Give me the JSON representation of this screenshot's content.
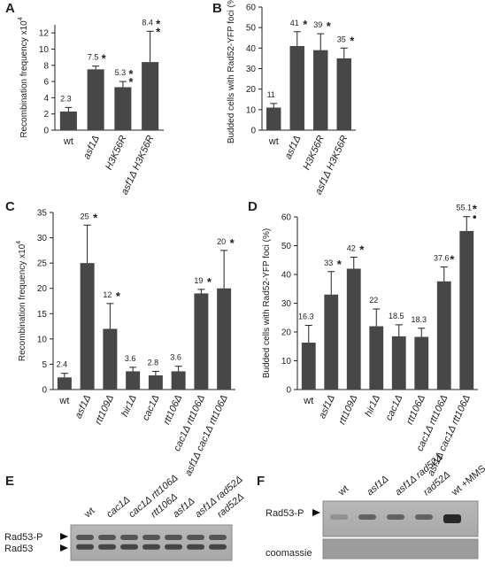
{
  "chart_data": [
    {
      "type": "bar",
      "panel": "A",
      "ylabel": "Recombination frequency x10",
      "ylabel_exponent": "4",
      "categories": [
        "wt",
        "asf1Δ",
        "H3K56R",
        "asf1Δ H3K56R"
      ],
      "values": [
        2.3,
        7.5,
        5.3,
        8.4
      ],
      "errors": [
        0.5,
        0.4,
        0.7,
        3.8
      ],
      "annotations": [
        null,
        "*",
        "**",
        "**"
      ],
      "color": "#474747",
      "ylim": [
        0,
        13
      ],
      "yticks": [
        0,
        2,
        4,
        6,
        8,
        10,
        12
      ]
    },
    {
      "type": "bar",
      "panel": "B",
      "ylabel": "Budded cells with Rad52-YFP foci (%)",
      "categories": [
        "wt",
        "asf1Δ",
        "H3K56R",
        "asf1Δ H3K56R"
      ],
      "values": [
        11,
        41,
        39,
        35
      ],
      "errors": [
        2,
        7,
        8,
        5
      ],
      "annotations": [
        null,
        "*",
        "*",
        "*"
      ],
      "color": "#474747",
      "ylim": [
        0,
        60
      ],
      "yticks": [
        0,
        10,
        20,
        30,
        40,
        50,
        60
      ]
    },
    {
      "type": "bar",
      "panel": "C",
      "ylabel": "Recombination frequency x10",
      "ylabel_exponent": "4",
      "categories": [
        "wt",
        "asf1Δ",
        "rtt109Δ",
        "hir1Δ",
        "cac1Δ",
        "rtt106Δ",
        "cac1Δ rtt106Δ",
        "asf1Δ cac1Δ rtt106Δ"
      ],
      "values": [
        2.4,
        25,
        12,
        3.6,
        2.8,
        3.6,
        19,
        20
      ],
      "errors": [
        0.8,
        7.5,
        5,
        0.8,
        0.8,
        1,
        0.8,
        7.5
      ],
      "annotations": [
        null,
        "*",
        "*",
        null,
        null,
        null,
        "*",
        "*"
      ],
      "color": "#474747",
      "ylim": [
        0,
        35
      ],
      "yticks": [
        0,
        5,
        10,
        15,
        20,
        25,
        30,
        35
      ]
    },
    {
      "type": "bar",
      "panel": "D",
      "ylabel": "Budded cells with Rad52-YFP foci (%)",
      "categories": [
        "wt",
        "asf1Δ",
        "rtt109Δ",
        "hir1Δ",
        "cac1Δ",
        "rtt106Δ",
        "cac1Δ rtt106Δ",
        "asf1Δ cac1Δ rtt106Δ"
      ],
      "values": [
        16.3,
        33,
        42,
        22,
        18.5,
        18.3,
        37.6,
        55.1
      ],
      "errors": [
        6,
        8,
        4,
        6,
        4,
        3,
        5,
        5
      ],
      "annotations": [
        null,
        "*",
        "*",
        null,
        null,
        null,
        "*",
        "*•"
      ],
      "color": "#474747",
      "ylim": [
        0,
        60
      ],
      "yticks": [
        0,
        10,
        20,
        30,
        40,
        50,
        60
      ]
    }
  ],
  "blots": [
    {
      "panel": "E",
      "lanes": [
        "wt",
        "cac1Δ",
        "cac1Δ rtt106Δ",
        "rtt106Δ",
        "asf1Δ",
        "asf1Δ rad52Δ",
        "rad52Δ"
      ],
      "labels": [
        "Rad53-P",
        "Rad53"
      ]
    },
    {
      "panel": "F",
      "lanes": [
        "wt",
        "asf1Δ",
        "asf1Δ rad52Δ",
        "rad52Δ",
        "wt +MMS"
      ],
      "labels": [
        "Rad53-P",
        "coomassie"
      ]
    }
  ]
}
